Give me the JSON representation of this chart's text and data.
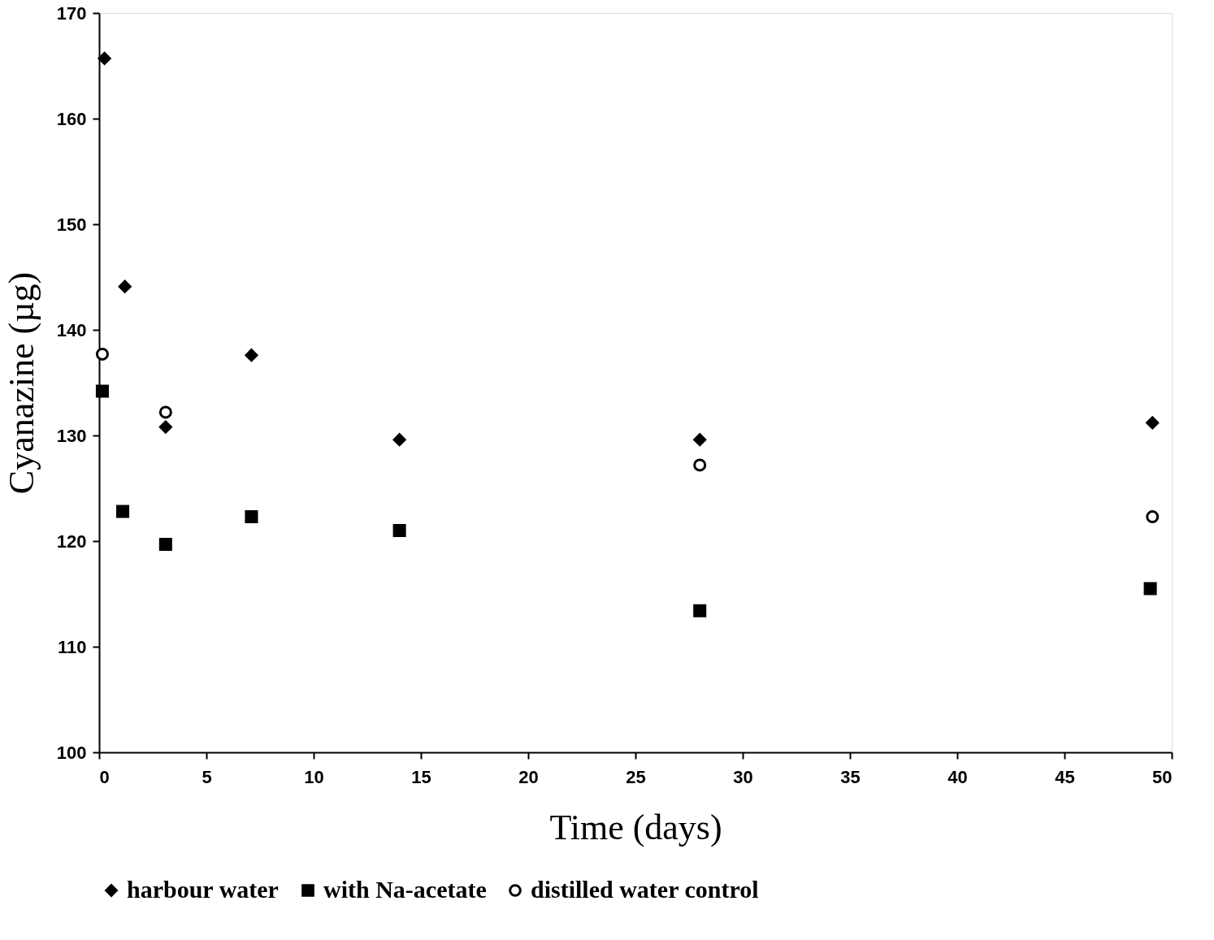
{
  "chart_data": {
    "type": "scatter",
    "xlabel": "Time (days)",
    "ylabel": "Cyanazine (µg)",
    "xlim": [
      0,
      50
    ],
    "xticks": [
      0,
      5,
      10,
      15,
      20,
      25,
      30,
      35,
      40,
      45,
      50
    ],
    "ylim": [
      100,
      170
    ],
    "yticks": [
      100,
      110,
      120,
      130,
      140,
      150,
      160,
      170
    ],
    "grid": false,
    "legend": "bottom",
    "series": [
      {
        "name": "harbour water",
        "color": "#000000",
        "marker": "diamond",
        "x": [
          0.25,
          1.2,
          3.1,
          7.1,
          14,
          28,
          49.1
        ],
        "values": [
          165.7,
          144.1,
          130.8,
          137.6,
          129.6,
          129.6,
          131.2
        ]
      },
      {
        "name": "with Na-acetate",
        "color": "#000000",
        "marker": "square",
        "x": [
          0.15,
          1.1,
          3.1,
          7.1,
          14,
          28,
          49
        ],
        "values": [
          134.2,
          122.8,
          119.7,
          122.3,
          121.0,
          113.4,
          115.5
        ]
      },
      {
        "name": "distilled water control",
        "color": "#000000",
        "marker": "circle",
        "x": [
          0.15,
          3.1,
          28,
          49.1
        ],
        "values": [
          137.7,
          132.2,
          127.2,
          122.3
        ]
      }
    ]
  }
}
